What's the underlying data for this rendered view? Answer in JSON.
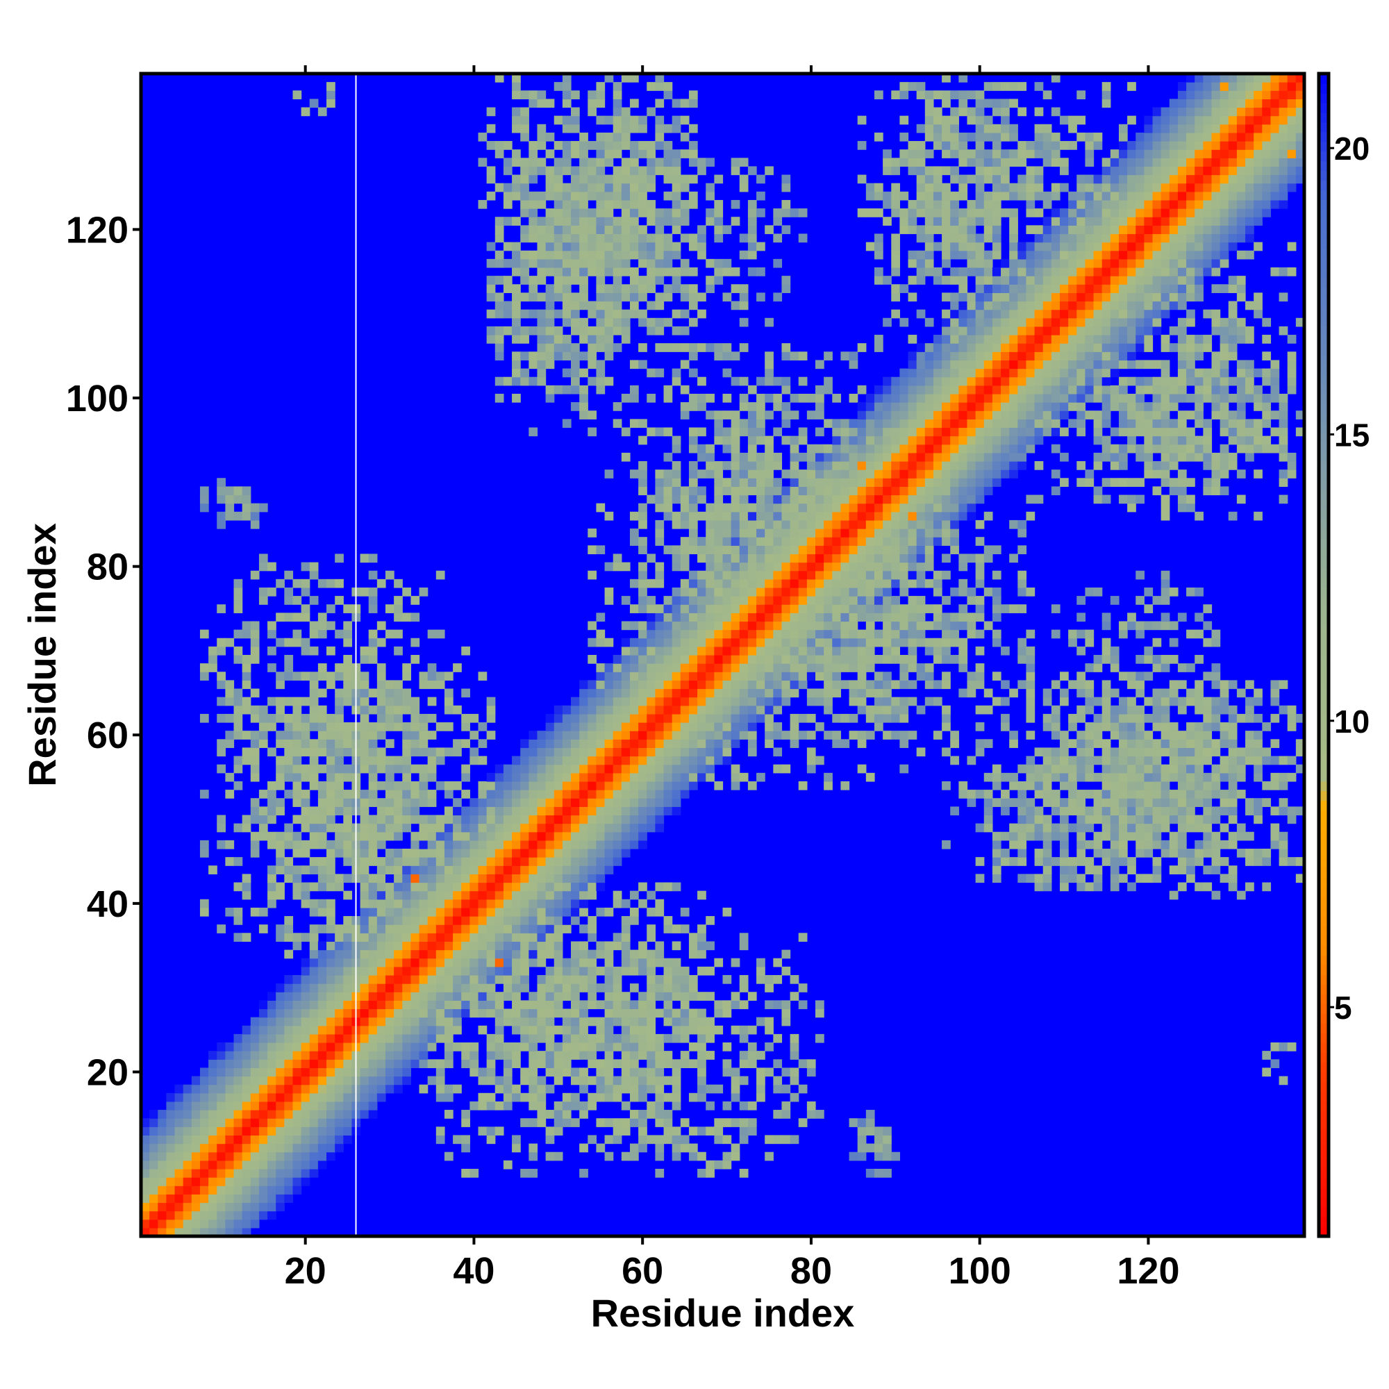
{
  "chart_data": {
    "type": "heatmap",
    "title": "",
    "xlabel": "Residue index",
    "ylabel": "Residue index",
    "n_residues": 138,
    "xlim": [
      1,
      138
    ],
    "ylim": [
      1,
      138
    ],
    "x_ticks": [
      20,
      40,
      60,
      80,
      100,
      120
    ],
    "y_ticks": [
      20,
      40,
      60,
      80,
      100,
      120
    ],
    "grid": false,
    "colorbar": {
      "position": "right",
      "range": [
        1,
        21.3
      ],
      "ticks": [
        5,
        10,
        15,
        20
      ],
      "stops": [
        {
          "value": 1,
          "color": "#ff0000"
        },
        {
          "value": 4,
          "color": "#ff4000"
        },
        {
          "value": 6,
          "color": "#ff8c00"
        },
        {
          "value": 8.5,
          "color": "#ffae00"
        },
        {
          "value": 9,
          "color": "#a8bb86"
        },
        {
          "value": 12,
          "color": "#9cb48f"
        },
        {
          "value": 16,
          "color": "#6c8cb8"
        },
        {
          "value": 19,
          "color": "#4a6fd0"
        },
        {
          "value": 21.3,
          "color": "#0000ff"
        }
      ]
    },
    "background_value": 21.3,
    "cutoff": 21,
    "vertical_line_x": 26,
    "diagonal_profile": [
      {
        "offset": 0,
        "value": 2
      },
      {
        "offset": 1,
        "value": 3.5
      },
      {
        "offset": 2,
        "value": 5.5
      },
      {
        "offset": 3,
        "value": 7
      },
      {
        "offset": 4,
        "value": 9.5
      },
      {
        "offset": 6,
        "value": 12
      },
      {
        "offset": 8,
        "value": 14.5
      },
      {
        "offset": 10,
        "value": 17
      },
      {
        "offset": 12,
        "value": 19.5
      },
      {
        "offset": 13,
        "value": 21
      }
    ],
    "contact_regions": [
      {
        "i_range": [
          8,
          37
        ],
        "j_range": [
          36,
          81
        ],
        "level": 12
      },
      {
        "i_range": [
          34,
          70
        ],
        "j_range": [
          14,
          42
        ],
        "level": 12
      },
      {
        "i_range": [
          41,
          67
        ],
        "j_range": [
          102,
          138
        ],
        "level": 12
      },
      {
        "i_range": [
          42,
          79
        ],
        "j_range": [
          108,
          129
        ],
        "level": 13
      },
      {
        "i_range": [
          54,
          96
        ],
        "j_range": [
          65,
          91
        ],
        "level": 12
      },
      {
        "i_range": [
          80,
          106
        ],
        "j_range": [
          58,
          88
        ],
        "level": 13
      },
      {
        "i_range": [
          86,
          118
        ],
        "j_range": [
          114,
          138
        ],
        "level": 12
      },
      {
        "i_range": [
          104,
          137
        ],
        "j_range": [
          88,
          106
        ],
        "level": 13
      },
      {
        "i_range": [
          114,
          137
        ],
        "j_range": [
          44,
          66
        ],
        "level": 13
      },
      {
        "i_range": [
          96,
          116
        ],
        "j_range": [
          43,
          58
        ],
        "level": 13
      },
      {
        "i_range": [
          85,
          90
        ],
        "j_range": [
          8,
          15
        ],
        "level": 14
      },
      {
        "i_range": [
          134,
          137
        ],
        "j_range": [
          17,
          25
        ],
        "level": 13
      }
    ],
    "close_contacts": [
      {
        "i": 33,
        "j": 43,
        "value": 5
      },
      {
        "i": 43,
        "j": 33,
        "value": 5
      },
      {
        "i": 86,
        "j": 92,
        "value": 6
      },
      {
        "i": 92,
        "j": 86,
        "value": 6
      },
      {
        "i": 137,
        "j": 129,
        "value": 7
      },
      {
        "i": 129,
        "j": 137,
        "value": 7
      }
    ]
  }
}
